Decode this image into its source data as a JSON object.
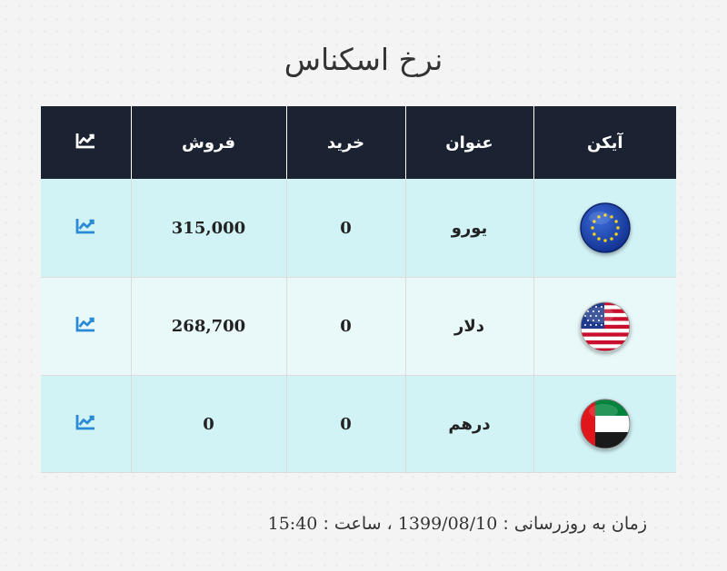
{
  "page": {
    "title": "نرخ اسکناس"
  },
  "table": {
    "headers": {
      "icon": "آیکن",
      "title": "عنوان",
      "buy": "خرید",
      "sell": "فروش",
      "chart_icon": "chart-line-icon"
    },
    "rows": [
      {
        "icon": "eu-flag-icon",
        "title": "یورو",
        "buy": "0",
        "sell": "315,000",
        "chart_icon": "chart-line-icon"
      },
      {
        "icon": "us-flag-icon",
        "title": "دلار",
        "buy": "0",
        "sell": "268,700",
        "chart_icon": "chart-line-icon"
      },
      {
        "icon": "uae-flag-icon",
        "title": "درهم",
        "buy": "0",
        "sell": "0",
        "chart_icon": "chart-line-icon"
      }
    ]
  },
  "footer": {
    "label": "زمان به روزرسانی :",
    "date": "1399/08/10",
    "separator": "، ساعت :",
    "time": "15:40"
  },
  "colors": {
    "header_bg": "#1b2232",
    "row_odd_bg": "#d2f3f6",
    "row_even_bg": "#e9f8f9",
    "chart_icon_body": "#2a8ad6",
    "chart_icon_header": "#ffffff"
  }
}
